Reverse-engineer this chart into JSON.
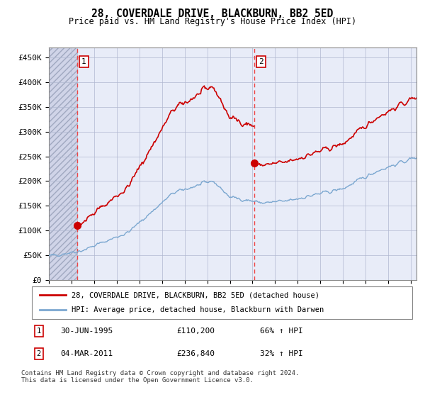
{
  "title": "28, COVERDALE DRIVE, BLACKBURN, BB2 5ED",
  "subtitle": "Price paid vs. HM Land Registry's House Price Index (HPI)",
  "ylim": [
    0,
    470000
  ],
  "yticks": [
    0,
    50000,
    100000,
    150000,
    200000,
    250000,
    300000,
    350000,
    400000,
    450000
  ],
  "ytick_labels": [
    "£0",
    "£50K",
    "£100K",
    "£150K",
    "£200K",
    "£250K",
    "£300K",
    "£350K",
    "£400K",
    "£450K"
  ],
  "xmin": 1993.0,
  "xmax": 2025.5,
  "sale1_x": 1995.5,
  "sale1_y": 110200,
  "sale2_x": 2011.17,
  "sale2_y": 236840,
  "legend_line1": "28, COVERDALE DRIVE, BLACKBURN, BB2 5ED (detached house)",
  "legend_line2": "HPI: Average price, detached house, Blackburn with Darwen",
  "table_row1": [
    "1",
    "30-JUN-1995",
    "£110,200",
    "66% ↑ HPI"
  ],
  "table_row2": [
    "2",
    "04-MAR-2011",
    "£236,840",
    "32% ↑ HPI"
  ],
  "footer": "Contains HM Land Registry data © Crown copyright and database right 2024.\nThis data is licensed under the Open Government Licence v3.0.",
  "bg_plot": "#e8ecf8",
  "bg_hatch": "#d0d4e8",
  "sale_color": "#cc0000",
  "hpi_color": "#7ba7d0",
  "vline_color": "#ee4444",
  "grid_color": "#b0b8d0"
}
